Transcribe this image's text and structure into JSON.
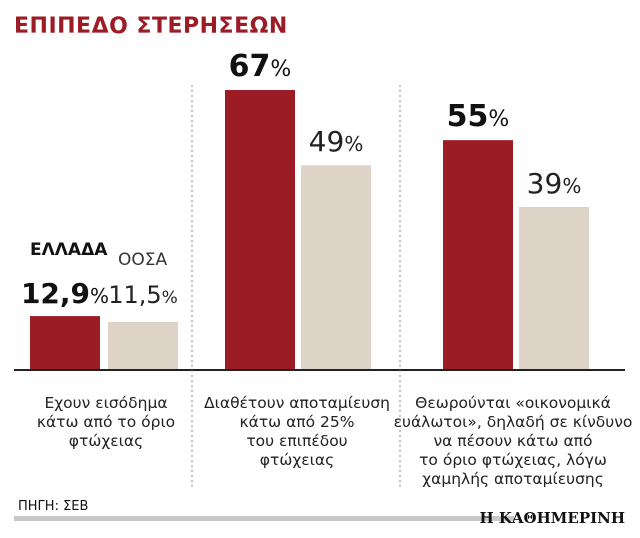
{
  "chart_data": {
    "type": "bar",
    "title": "ΕΠΙΠΕΔΟ ΣΤΕΡΗΣΕΩΝ",
    "legend": {
      "greece": "ΕΛΛΑΔΑ",
      "oecd": "ΟΟΣΑ"
    },
    "categories": [
      [
        "Εχουν εισόδημα",
        "κάτω από το όριο",
        "φτώχειας"
      ],
      [
        "Διαθέτουν αποταμίευση",
        "κάτω από 25%",
        "του επιπέδου",
        "φτώχειας"
      ],
      [
        "Θεωρούνται «οικονομικά",
        "ευάλωτοι», δηλαδή σε κίνδυνο",
        "να πέσουν κάτω από",
        "το όριο φτώχειας, λόγω",
        "χαμηλής αποταμίευσης"
      ]
    ],
    "series": [
      {
        "name": "ΕΛΛΑΔΑ",
        "values": [
          12.9,
          67,
          55
        ],
        "labels": [
          "12,9",
          "67",
          "55"
        ],
        "color": "#9c1c26"
      },
      {
        "name": "ΟΟΣΑ",
        "values": [
          11.5,
          49,
          39
        ],
        "labels": [
          "11,5",
          "49",
          "39"
        ],
        "color": "#ddd3c6"
      }
    ],
    "unit": "%",
    "ylim": [
      0,
      67
    ],
    "grid": false
  },
  "source": "ΠΗΓΗ: ΣΕΒ",
  "brand": "Η ΚΑΘΗΜΕΡΙΝΗ",
  "colors": {
    "title": "#9c1c26",
    "greece": "#9c1c26",
    "oecd": "#ddd3c6"
  }
}
